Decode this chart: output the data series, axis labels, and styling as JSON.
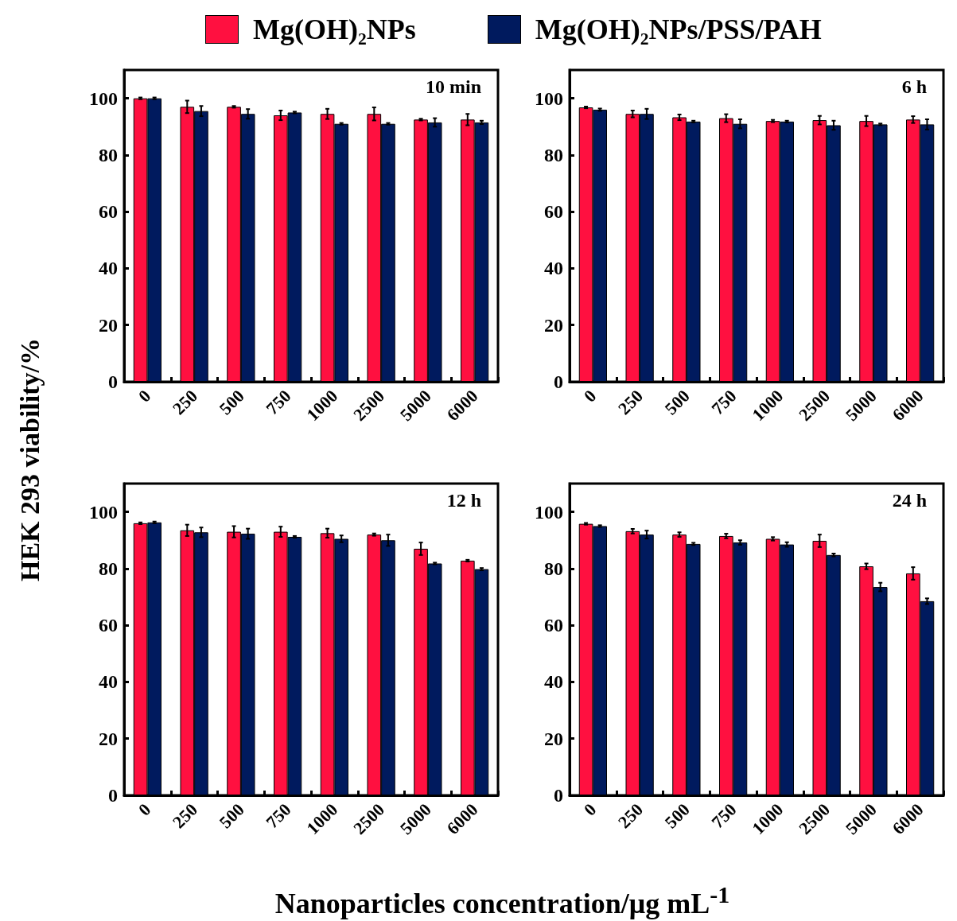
{
  "chart_data": [
    {
      "type": "bar",
      "title": "10 min",
      "ylabel": "HEK 293 viability/%",
      "xlabel": "Nanoparticles concentration/μg mL$^{-1}$",
      "legend": "top",
      "grid": false,
      "categories": [
        "0",
        "250",
        "500",
        "750",
        "1000",
        "2500",
        "5000",
        "6000"
      ],
      "ylim": [
        0,
        110
      ],
      "yticks": [
        0,
        20,
        40,
        60,
        80,
        100
      ],
      "series": [
        {
          "name": "Mg(OH)₂NPs",
          "color": "#ff1040",
          "values": [
            100,
            97,
            97,
            94,
            94.5,
            94.5,
            92.5,
            92.5
          ],
          "errors": [
            0.3,
            2.2,
            0.3,
            1.7,
            1.8,
            2.3,
            0.3,
            2
          ]
        },
        {
          "name": "Mg(OH)₂NPs/PSS/PAH",
          "color": "#001a5e",
          "values": [
            100,
            95.5,
            94.5,
            95,
            91,
            91,
            91.5,
            91.5
          ],
          "errors": [
            0.3,
            1.8,
            1.7,
            0.3,
            0.3,
            0.3,
            1.5,
            0.6
          ]
        }
      ]
    },
    {
      "type": "bar",
      "title": "6 h",
      "grid": false,
      "categories": [
        "0",
        "250",
        "500",
        "750",
        "1000",
        "2500",
        "5000",
        "6000"
      ],
      "ylim": [
        0,
        110
      ],
      "yticks": [
        0,
        20,
        40,
        60,
        80,
        100
      ],
      "series": [
        {
          "color": "#ff1040",
          "values": [
            96.8,
            94.5,
            93.3,
            93,
            92,
            92.3,
            92,
            92.5
          ],
          "errors": [
            0.3,
            1.2,
            1,
            1.4,
            0.4,
            1.5,
            1.8,
            1.2
          ]
        },
        {
          "color": "#001a5e",
          "values": [
            96,
            94.5,
            91.8,
            91,
            91.8,
            90.5,
            90.8,
            90.8
          ],
          "errors": [
            0.4,
            1.8,
            0.3,
            1.6,
            0.3,
            1.6,
            0.3,
            1.8
          ]
        }
      ]
    },
    {
      "type": "bar",
      "title": "12 h",
      "grid": false,
      "categories": [
        "0",
        "250",
        "500",
        "750",
        "1000",
        "2500",
        "5000",
        "6000"
      ],
      "ylim": [
        0,
        110
      ],
      "yticks": [
        0,
        20,
        40,
        60,
        80,
        100
      ],
      "series": [
        {
          "color": "#ff1040",
          "values": [
            96,
            93.5,
            93,
            93,
            92.5,
            92,
            87,
            82.8
          ],
          "errors": [
            0.3,
            2,
            2,
            1.8,
            1.6,
            0.4,
            2.2,
            0.3
          ]
        },
        {
          "color": "#001a5e",
          "values": [
            96.3,
            92.8,
            92.3,
            91.2,
            90.5,
            90,
            81.8,
            79.8
          ],
          "errors": [
            0.3,
            1.7,
            1.8,
            0.3,
            1.2,
            2,
            0.3,
            0.4
          ]
        }
      ]
    },
    {
      "type": "bar",
      "title": "24 h",
      "grid": false,
      "categories": [
        "0",
        "250",
        "500",
        "750",
        "1000",
        "2500",
        "5000",
        "6000"
      ],
      "ylim": [
        0,
        110
      ],
      "yticks": [
        0,
        20,
        40,
        60,
        80,
        100
      ],
      "series": [
        {
          "color": "#ff1040",
          "values": [
            95.8,
            93.2,
            92,
            91.5,
            90.5,
            89.8,
            80.8,
            78.3
          ],
          "errors": [
            0.3,
            0.8,
            0.8,
            0.8,
            0.6,
            2.2,
            1,
            2.2
          ]
        },
        {
          "color": "#001a5e",
          "values": [
            95,
            92,
            88.7,
            89.2,
            88.5,
            84.8,
            73.5,
            68.5
          ],
          "errors": [
            0.3,
            1.4,
            0.4,
            0.8,
            0.8,
            0.5,
            1.5,
            1
          ]
        }
      ]
    }
  ]
}
